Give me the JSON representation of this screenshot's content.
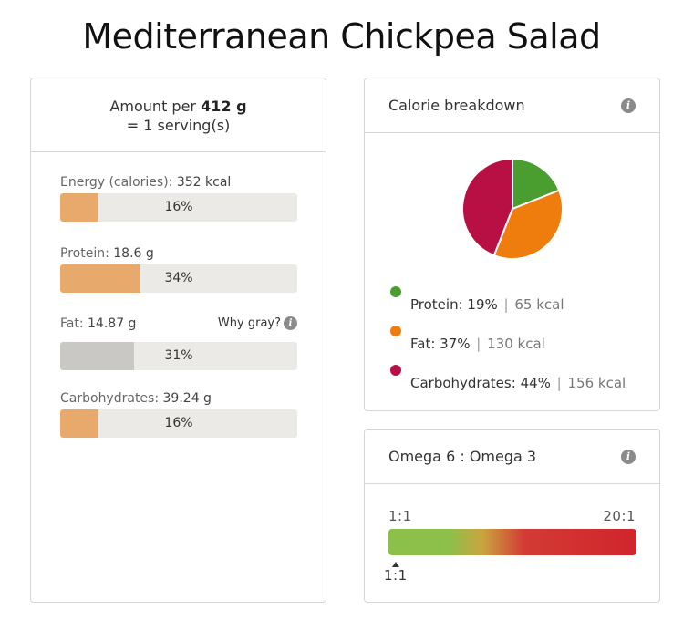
{
  "title": "Mediterranean Chickpea Salad",
  "serving": {
    "prefix": "Amount per",
    "amount": "412 g",
    "line2": "= 1 serving(s)"
  },
  "nutrients": [
    {
      "name": "Energy (calories):",
      "value": "352 kcal",
      "percent_label": "16%",
      "percent": 16,
      "gray": false
    },
    {
      "name": "Protein:",
      "value": "18.6 g",
      "percent_label": "34%",
      "percent": 34,
      "gray": false
    },
    {
      "name": "Fat:",
      "value": "14.87 g",
      "percent_label": "31%",
      "percent": 31,
      "gray": true
    },
    {
      "name": "Carbohydrates:",
      "value": "39.24 g",
      "percent_label": "16%",
      "percent": 16,
      "gray": false
    }
  ],
  "why_gray_label": "Why gray?",
  "info_icon_glyph": "i",
  "calorie_breakdown": {
    "title": "Calorie breakdown",
    "items": [
      {
        "name": "Protein:",
        "percent_label": "19%",
        "kcal": "65 kcal",
        "color": "#4a9e2f"
      },
      {
        "name": "Fat:",
        "percent_label": "37%",
        "kcal": "130 kcal",
        "color": "#ef7d0e"
      },
      {
        "name": "Carbohydrates:",
        "percent_label": "44%",
        "kcal": "156 kcal",
        "color": "#b80f45"
      }
    ]
  },
  "chart_data": {
    "type": "pie",
    "categories": [
      "Protein",
      "Fat",
      "Carbohydrates"
    ],
    "values": [
      19,
      37,
      44
    ],
    "colors": [
      "#4a9e2f",
      "#ef7d0e",
      "#b80f45"
    ],
    "title": "Calorie breakdown"
  },
  "omega": {
    "title": "Omega 6 : Omega 3",
    "min_label": "1:1",
    "max_label": "20:1",
    "value_label": "1:1",
    "value_ratio": 1,
    "scale_min": 1,
    "scale_max": 20
  }
}
